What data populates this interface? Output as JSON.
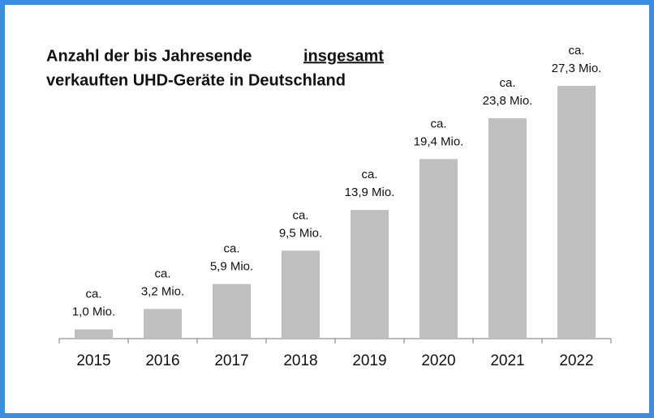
{
  "chart_data": {
    "type": "bar",
    "title": [
      "Anzahl der bis Jahresende",
      "insgesamt",
      "verkauften UHD-Geräte in Deutschland"
    ],
    "categories": [
      "2015",
      "2016",
      "2017",
      "2018",
      "2019",
      "2020",
      "2021",
      "2022"
    ],
    "values": [
      1.0,
      3.2,
      5.9,
      9.5,
      13.9,
      19.4,
      23.8,
      27.3
    ],
    "value_labels": [
      [
        "ca.",
        "1,0 Mio."
      ],
      [
        "ca.",
        "3,2 Mio."
      ],
      [
        "ca.",
        "5,9 Mio."
      ],
      [
        "ca.",
        "9,5 Mio."
      ],
      [
        "ca.",
        "13,9 Mio."
      ],
      [
        "ca.",
        "19,4 Mio."
      ],
      [
        "ca.",
        "23,8 Mio."
      ],
      [
        "ca.",
        "27,3 Mio."
      ]
    ],
    "color": "#bfbfbf"
  }
}
